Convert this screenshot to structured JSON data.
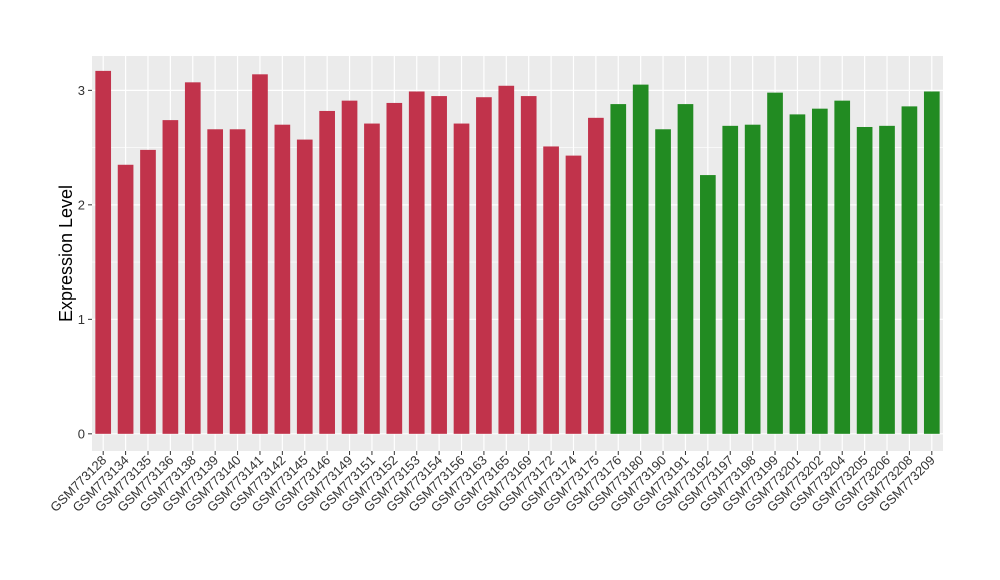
{
  "chart_data": {
    "type": "bar",
    "ylabel": "Expression Level",
    "xlabel": "",
    "ylim": [
      -0.15,
      3.3
    ],
    "yticks": [
      0,
      1,
      2,
      3
    ],
    "grid": true,
    "legend": "none",
    "colors": {
      "group1": "#c1334b",
      "group2": "#228b22",
      "panel": "#ebebeb",
      "grid": "#ffffff"
    },
    "categories": [
      "GSM773128",
      "GSM773134",
      "GSM773135",
      "GSM773136",
      "GSM773138",
      "GSM773139",
      "GSM773140",
      "GSM773141",
      "GSM773142",
      "GSM773145",
      "GSM773146",
      "GSM773149",
      "GSM773151",
      "GSM773152",
      "GSM773153",
      "GSM773154",
      "GSM773156",
      "GSM773163",
      "GSM773165",
      "GSM773169",
      "GSM773172",
      "GSM773174",
      "GSM773175",
      "GSM773176",
      "GSM773180",
      "GSM773190",
      "GSM773191",
      "GSM773192",
      "GSM773197",
      "GSM773198",
      "GSM773199",
      "GSM773201",
      "GSM773202",
      "GSM773204",
      "GSM773205",
      "GSM773206",
      "GSM773208",
      "GSM773209"
    ],
    "values": [
      3.17,
      2.35,
      2.48,
      2.74,
      3.07,
      2.66,
      2.66,
      3.14,
      2.7,
      2.57,
      2.82,
      2.91,
      2.71,
      2.89,
      2.99,
      2.95,
      2.71,
      2.94,
      3.04,
      2.95,
      2.51,
      2.43,
      2.76,
      2.88,
      3.05,
      2.66,
      2.88,
      2.26,
      2.69,
      2.7,
      2.98,
      2.79,
      2.84,
      2.91,
      2.68,
      2.69,
      2.86,
      2.99
    ],
    "groups": [
      1,
      1,
      1,
      1,
      1,
      1,
      1,
      1,
      1,
      1,
      1,
      1,
      1,
      1,
      1,
      1,
      1,
      1,
      1,
      1,
      1,
      1,
      1,
      2,
      2,
      2,
      2,
      2,
      2,
      2,
      2,
      2,
      2,
      2,
      2,
      2,
      2,
      2
    ]
  }
}
